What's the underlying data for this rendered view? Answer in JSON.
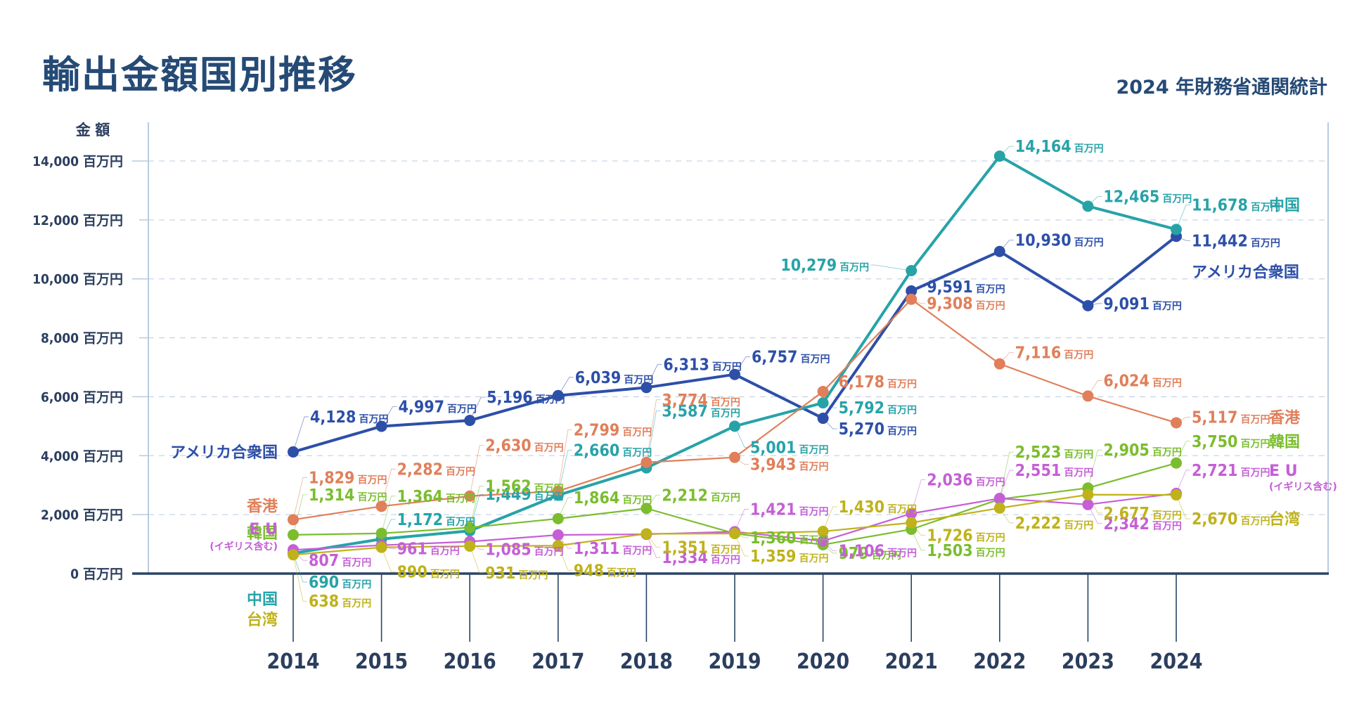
{
  "page": {
    "title": "輸出金額国別推移",
    "source": "2024 年財務省通関統計"
  },
  "chart_data": {
    "type": "line",
    "title": "輸出金額国別推移",
    "subtitle": "2024 年財務省通関統計",
    "xlabel": "",
    "ylabel": "金 額",
    "unit": "百万円",
    "ylim": [
      0,
      14000
    ],
    "yticks": [
      0,
      2000,
      4000,
      6000,
      8000,
      10000,
      12000,
      14000
    ],
    "ytick_labels": [
      "0 百万円",
      "2,000 百万円",
      "4,000 百万円",
      "6,000 百万円",
      "8,000 百万円",
      "10,000 百万円",
      "12,000 百万円",
      "14,000 百万円"
    ],
    "grid": true,
    "legend": "inline-labels-at-line-ends",
    "categories": [
      "2014",
      "2015",
      "2016",
      "2017",
      "2018",
      "2019",
      "2020",
      "2021",
      "2022",
      "2023",
      "2024"
    ],
    "series": [
      {
        "key": "usa",
        "name": "アメリカ合衆国",
        "color": "#2d4fa8",
        "values": [
          4128,
          4997,
          5196,
          6039,
          6313,
          6757,
          5270,
          9591,
          10930,
          9091,
          11442
        ],
        "labels": [
          "4,128",
          "4,997",
          "5,196",
          "6,039",
          "6,313",
          "6,757",
          "5,270",
          "9,591",
          "10,930",
          "9,091",
          "11,442"
        ]
      },
      {
        "key": "china",
        "name": "中国",
        "color": "#27a3a8",
        "values": [
          690,
          1172,
          1449,
          2660,
          3587,
          5001,
          5792,
          10279,
          14164,
          12465,
          11678
        ],
        "labels": [
          "690",
          "1,172",
          "1,449",
          "2,660",
          "3,587",
          "5,001",
          "5,792",
          "10,279",
          "14,164",
          "12,465",
          "11,678"
        ]
      },
      {
        "key": "hongkong",
        "name": "香港",
        "color": "#e07f5a",
        "values": [
          1829,
          2282,
          2630,
          2799,
          3774,
          3943,
          6178,
          9308,
          7116,
          6024,
          5117
        ],
        "labels": [
          "1,829",
          "2,282",
          "2,630",
          "2,799",
          "3,774",
          "3,943",
          "6,178",
          "9,308",
          "7,116",
          "6,024",
          "5,117"
        ]
      },
      {
        "key": "korea",
        "name": "韓国",
        "color": "#7bbd2e",
        "values": [
          1314,
          1364,
          1562,
          1864,
          2212,
          1360,
          979,
          1503,
          2523,
          2905,
          3750
        ],
        "labels": [
          "1,314",
          "1,364",
          "1,562",
          "1,864",
          "2,212",
          "1,360",
          "979",
          "1,503",
          "2,523",
          "2,905",
          "3,750"
        ]
      },
      {
        "key": "eu",
        "name": "E U",
        "sub_name": "(イギリス含む)",
        "color": "#c55fd6",
        "values": [
          807,
          961,
          1085,
          1311,
          1334,
          1421,
          1106,
          2036,
          2551,
          2342,
          2721
        ],
        "labels": [
          "807",
          "961",
          "1,085",
          "1,311",
          "1,334",
          "1,421",
          "1,106",
          "2,036",
          "2,551",
          "2,342",
          "2,721"
        ]
      },
      {
        "key": "taiwan",
        "name": "台湾",
        "color": "#bfb21a",
        "values": [
          638,
          890,
          931,
          948,
          1351,
          1359,
          1430,
          1726,
          2222,
          2677,
          2670
        ],
        "labels": [
          "638",
          "890",
          "931",
          "948",
          "1,351",
          "1,359",
          "1,430",
          "1,726",
          "2,222",
          "2,677",
          "2,670"
        ]
      }
    ]
  }
}
